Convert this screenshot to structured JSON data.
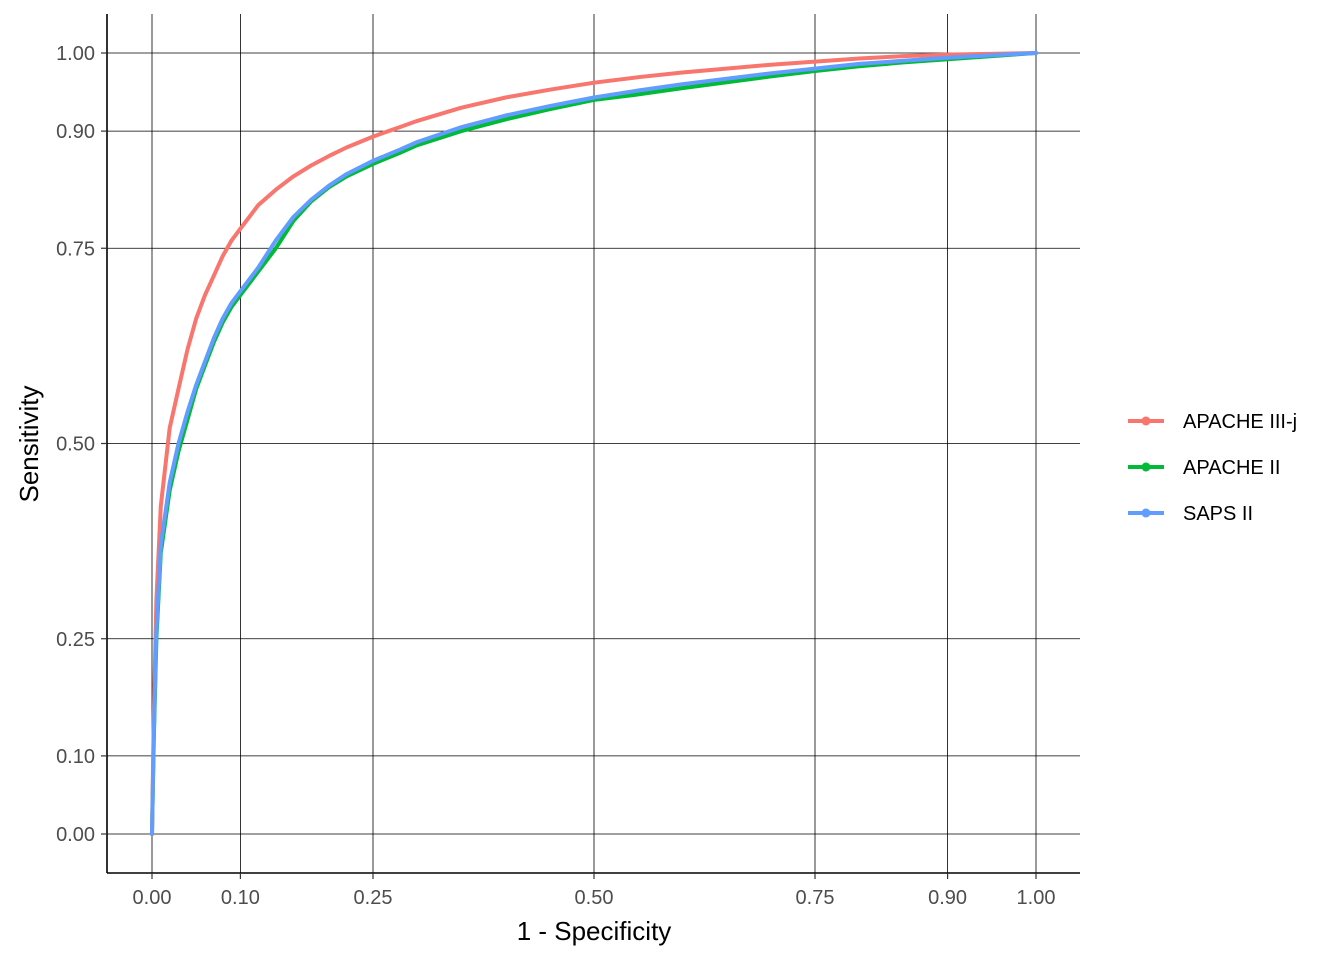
{
  "chart_data": {
    "type": "line",
    "title": "",
    "xlabel": "1 - Specificity",
    "ylabel": "Sensitivity",
    "xlim": [
      -0.05,
      1.05
    ],
    "ylim": [
      -0.05,
      1.05
    ],
    "x_ticks": [
      0.0,
      0.1,
      0.25,
      0.5,
      0.75,
      0.9,
      1.0
    ],
    "x_tick_labels": [
      "0.00",
      "0.10",
      "0.25",
      "0.50",
      "0.75",
      "0.90",
      "1.00"
    ],
    "y_ticks": [
      0.0,
      0.1,
      0.25,
      0.5,
      0.75,
      0.9,
      1.0
    ],
    "y_tick_labels": [
      "0.00",
      "0.10",
      "0.25",
      "0.50",
      "0.75",
      "0.90",
      "1.00"
    ],
    "grid": true,
    "legend_position": "right",
    "series": [
      {
        "name": "APACHE III-j",
        "color": "#F8766D",
        "x": [
          0.0,
          0.002,
          0.005,
          0.01,
          0.02,
          0.03,
          0.04,
          0.05,
          0.06,
          0.07,
          0.08,
          0.09,
          0.1,
          0.12,
          0.14,
          0.16,
          0.18,
          0.2,
          0.22,
          0.25,
          0.28,
          0.3,
          0.35,
          0.4,
          0.45,
          0.5,
          0.55,
          0.6,
          0.7,
          0.8,
          0.85,
          0.9,
          1.0
        ],
        "values": [
          0.0,
          0.15,
          0.3,
          0.42,
          0.52,
          0.57,
          0.62,
          0.66,
          0.69,
          0.715,
          0.74,
          0.76,
          0.775,
          0.805,
          0.825,
          0.842,
          0.856,
          0.868,
          0.879,
          0.893,
          0.905,
          0.913,
          0.93,
          0.943,
          0.953,
          0.962,
          0.969,
          0.975,
          0.985,
          0.993,
          0.996,
          0.998,
          1.0
        ]
      },
      {
        "name": "APACHE II",
        "color": "#00BA38",
        "x": [
          0.0,
          0.002,
          0.005,
          0.01,
          0.02,
          0.03,
          0.04,
          0.05,
          0.06,
          0.07,
          0.08,
          0.09,
          0.1,
          0.12,
          0.14,
          0.16,
          0.18,
          0.2,
          0.22,
          0.25,
          0.28,
          0.3,
          0.35,
          0.4,
          0.45,
          0.5,
          0.55,
          0.6,
          0.7,
          0.75,
          0.8,
          0.85,
          0.9,
          0.95,
          1.0
        ],
        "values": [
          0.0,
          0.12,
          0.25,
          0.36,
          0.44,
          0.49,
          0.53,
          0.57,
          0.6,
          0.63,
          0.655,
          0.675,
          0.69,
          0.72,
          0.75,
          0.785,
          0.81,
          0.828,
          0.842,
          0.858,
          0.872,
          0.882,
          0.9,
          0.915,
          0.928,
          0.94,
          0.947,
          0.955,
          0.97,
          0.977,
          0.983,
          0.988,
          0.992,
          0.996,
          1.0
        ]
      },
      {
        "name": "SAPS II",
        "color": "#619CFF",
        "x": [
          0.0,
          0.002,
          0.005,
          0.01,
          0.02,
          0.03,
          0.04,
          0.05,
          0.06,
          0.07,
          0.08,
          0.09,
          0.1,
          0.12,
          0.14,
          0.16,
          0.18,
          0.2,
          0.22,
          0.25,
          0.28,
          0.3,
          0.35,
          0.4,
          0.45,
          0.5,
          0.55,
          0.6,
          0.7,
          0.75,
          0.8,
          0.85,
          0.9,
          0.95,
          1.0
        ],
        "values": [
          0.0,
          0.13,
          0.26,
          0.37,
          0.45,
          0.5,
          0.54,
          0.575,
          0.605,
          0.635,
          0.66,
          0.68,
          0.695,
          0.725,
          0.76,
          0.79,
          0.812,
          0.83,
          0.845,
          0.862,
          0.876,
          0.886,
          0.905,
          0.92,
          0.932,
          0.943,
          0.952,
          0.96,
          0.974,
          0.98,
          0.986,
          0.99,
          0.994,
          0.997,
          1.0
        ]
      }
    ]
  }
}
